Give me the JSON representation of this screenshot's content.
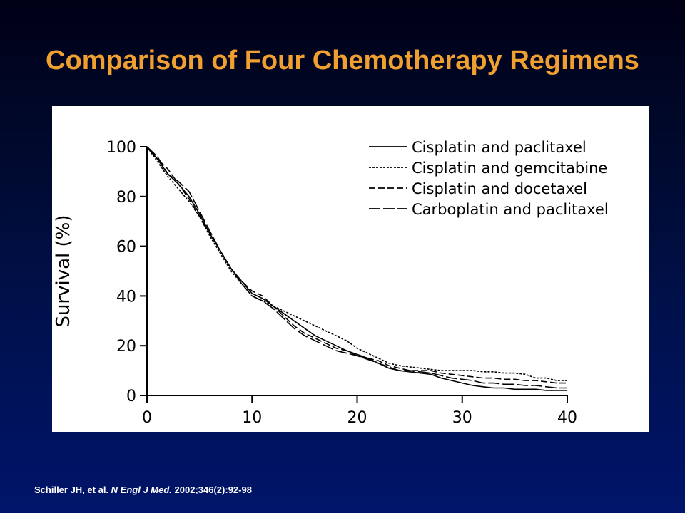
{
  "slide": {
    "title": "Comparison of Four Chemotherapy Regimens",
    "citation": {
      "authors": "Schiller JH, et al.",
      "journal": "N Engl J Med.",
      "details": "2002;346(2):92-98"
    }
  },
  "colors": {
    "title": "#f0a030",
    "background": "#000a2e",
    "panel": "#ffffff",
    "ink": "#000000"
  },
  "chart_data": {
    "type": "line",
    "title": "",
    "xlabel": "",
    "ylabel": "Survival (%)",
    "xlim": [
      0,
      40
    ],
    "ylim": [
      0,
      100
    ],
    "xticks": [
      "0",
      "10",
      "20",
      "30",
      "40"
    ],
    "yticks": [
      "0",
      "20",
      "40",
      "60",
      "80",
      "100"
    ],
    "grid": false,
    "legend_position": "top-right",
    "series": [
      {
        "name": "Cisplatin and paclitaxel",
        "style": "solid",
        "x": [
          0,
          1,
          2,
          3,
          4,
          5,
          6,
          7,
          8,
          9,
          10,
          11,
          12,
          13,
          14,
          15,
          16,
          17,
          18,
          19,
          20,
          21,
          22,
          23,
          24,
          25,
          26,
          27,
          28,
          29,
          30,
          31,
          32,
          33,
          34,
          35,
          36,
          37,
          38,
          39,
          40
        ],
        "y": [
          100,
          95,
          89,
          85,
          80,
          73,
          65,
          58,
          51,
          46,
          41,
          39,
          36,
          33,
          30,
          27,
          24,
          22,
          20,
          18,
          16.5,
          15,
          13,
          11,
          10,
          9.5,
          9,
          8.5,
          7,
          6,
          5,
          4,
          3.5,
          3,
          3,
          2.5,
          2.5,
          2.5,
          2,
          2,
          2
        ]
      },
      {
        "name": "Cisplatin and gemcitabine",
        "style": "dotted",
        "x": [
          0,
          1,
          2,
          3,
          4,
          5,
          6,
          7,
          8,
          9,
          10,
          11,
          12,
          13,
          14,
          15,
          16,
          17,
          18,
          19,
          20,
          21,
          22,
          23,
          24,
          25,
          26,
          27,
          28,
          29,
          30,
          31,
          32,
          33,
          34,
          35,
          36,
          37,
          38,
          39,
          40
        ],
        "y": [
          100,
          94,
          88,
          83,
          78,
          72,
          64,
          57,
          50,
          45,
          40,
          38,
          36,
          34,
          32,
          30,
          28,
          26,
          24,
          22,
          19,
          17,
          15,
          13,
          12,
          11.5,
          11,
          10.5,
          10,
          10,
          10,
          10,
          9.5,
          9.5,
          9,
          9,
          8.5,
          7,
          7,
          6,
          6
        ]
      },
      {
        "name": "Cisplatin and docetaxel",
        "style": "short-dash",
        "x": [
          0,
          1,
          2,
          3,
          4,
          5,
          6,
          7,
          8,
          9,
          10,
          11,
          12,
          13,
          14,
          15,
          16,
          17,
          18,
          19,
          20,
          21,
          22,
          23,
          24,
          25,
          26,
          27,
          28,
          29,
          30,
          31,
          32,
          33,
          34,
          35,
          36,
          37,
          38,
          39,
          40
        ],
        "y": [
          100,
          95,
          91,
          85,
          79,
          72,
          65,
          58,
          51,
          46,
          42,
          40,
          36,
          32,
          28,
          25,
          23,
          21,
          19,
          18,
          16,
          15,
          14,
          12,
          11,
          10,
          10,
          10,
          9,
          8.5,
          8,
          7.5,
          7,
          7,
          6.5,
          6.5,
          6,
          6,
          5.5,
          5,
          5
        ]
      },
      {
        "name": "Carboplatin and paclitaxel",
        "style": "long-dash",
        "x": [
          0,
          1,
          2,
          3,
          4,
          5,
          6,
          7,
          8,
          9,
          10,
          11,
          12,
          13,
          14,
          15,
          16,
          17,
          18,
          19,
          20,
          21,
          22,
          23,
          24,
          25,
          26,
          27,
          28,
          29,
          30,
          31,
          32,
          33,
          34,
          35,
          36,
          37,
          38,
          39,
          40
        ],
        "y": [
          100,
          96,
          89,
          86,
          82,
          74,
          66,
          58,
          51,
          45,
          40,
          38,
          35,
          31,
          27,
          24,
          22,
          20,
          18,
          17,
          16,
          14.5,
          13,
          11.5,
          10,
          10,
          9.5,
          9,
          8,
          7,
          6.5,
          6,
          5,
          5,
          4.5,
          4.5,
          4,
          4,
          3.5,
          3,
          3
        ]
      }
    ]
  }
}
